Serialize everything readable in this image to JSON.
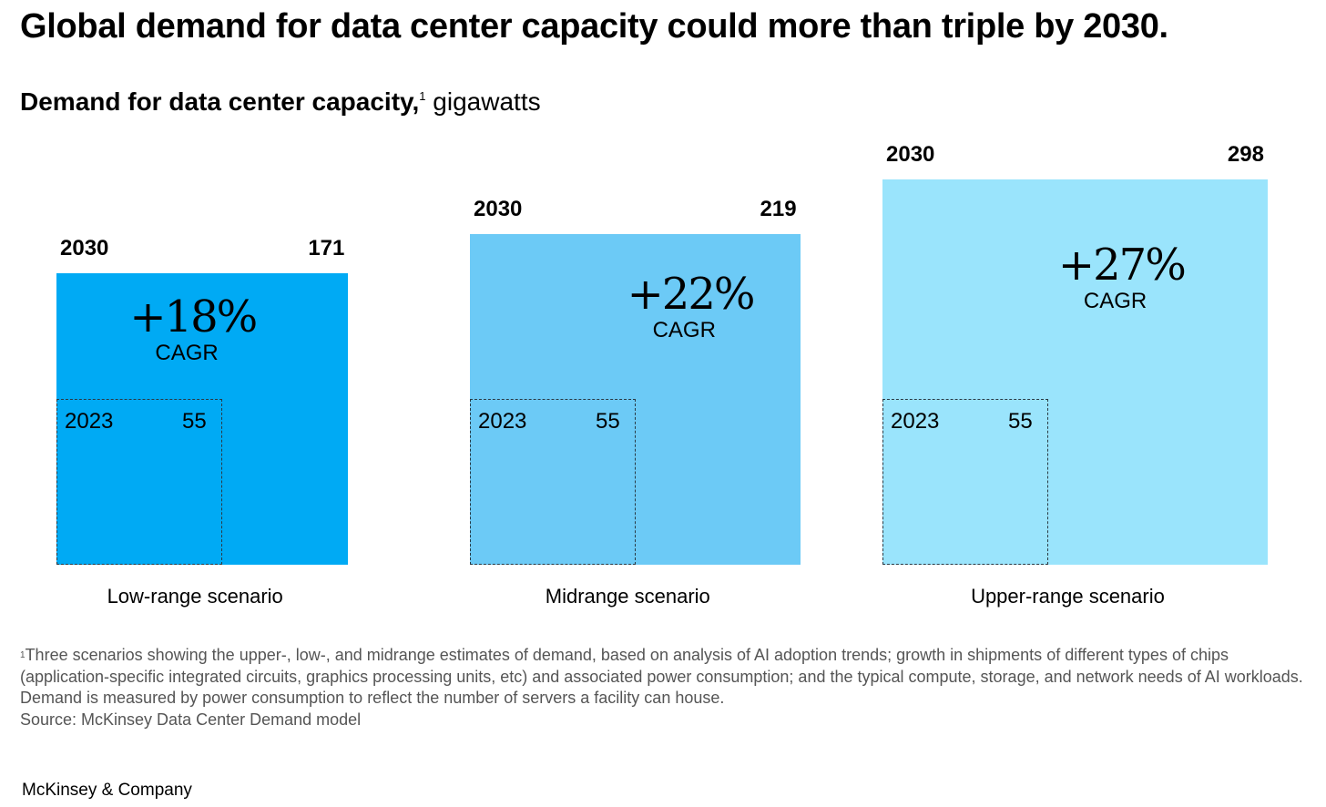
{
  "title": "Global demand for data center capacity could more than triple by 2030.",
  "subtitle": {
    "bold": "Demand for data center capacity,",
    "footnote_mark": "1",
    "unit": " gigawatts"
  },
  "chart_data": {
    "type": "area-squares",
    "title": "Demand for data center capacity, gigawatts",
    "unit": "gigawatts",
    "base_year": "2023",
    "target_year": "2030",
    "scenarios": [
      {
        "name": "Low-range scenario",
        "value_2023": 55,
        "value_2030": 171,
        "cagr": "+18%",
        "cagr_label": "CAGR",
        "color": "#00AAF4"
      },
      {
        "name": "Midrange scenario",
        "value_2023": 55,
        "value_2030": 219,
        "cagr": "+22%",
        "cagr_label": "CAGR",
        "color": "#6CCAF6"
      },
      {
        "name": "Upper-range scenario",
        "value_2023": 55,
        "value_2030": 298,
        "cagr": "+27%",
        "cagr_label": "CAGR",
        "color": "#9AE4FC"
      }
    ]
  },
  "footnote": {
    "mark": "1",
    "text": "Three scenarios showing the upper-, low-, and midrange estimates of demand, based on analysis of AI adoption trends; growth in shipments of different types of chips (application-specific integrated circuits, graphics processing units, etc) and associated power consumption; and the typical compute, storage, and network needs of AI workloads. Demand is measured by power consumption to reflect the number of servers a facility can house.",
    "source": "Source: McKinsey Data Center Demand model"
  },
  "logo": "McKinsey & Company"
}
